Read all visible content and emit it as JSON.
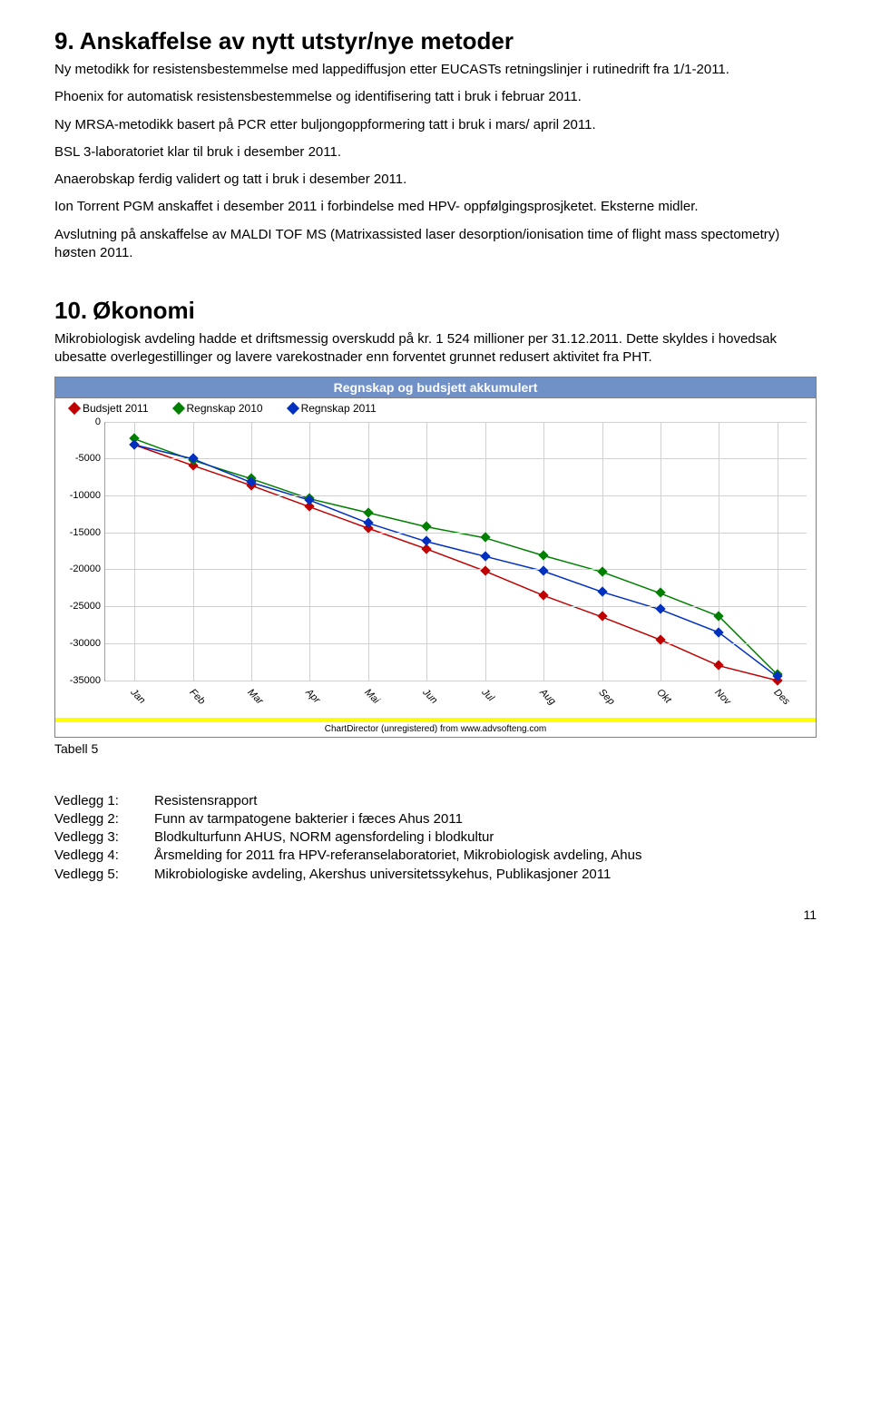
{
  "section9": {
    "number": "9.",
    "title": "Anskaffelse av nytt utstyr/nye metoder",
    "paras": [
      "Ny metodikk for resistensbestemmelse med lappediffusjon etter EUCASTs retningslinjer i rutinedrift fra 1/1-2011.",
      "Phoenix for automatisk resistensbestemmelse og identifisering tatt i bruk i februar 2011.",
      "Ny MRSA-metodikk basert på PCR etter buljongoppformering tatt i bruk i mars/ april 2011.",
      "BSL 3-laboratoriet klar til bruk i desember 2011.",
      "Anaerobskap ferdig validert og tatt i bruk i desember 2011.",
      "Ion Torrent PGM anskaffet i desember 2011 i forbindelse med HPV- oppfølgingsprosjketet. Eksterne midler.",
      "Avslutning på anskaffelse av MALDI TOF MS (Matrixassisted laser desorption/ionisation time of flight mass spectometry) høsten 2011."
    ]
  },
  "section10": {
    "number": "10.",
    "title": "Økonomi",
    "para": "Mikrobiologisk avdeling hadde et driftsmessig overskudd på kr. 1 524 millioner per 31.12.2011. Dette skyldes i hovedsak ubesatte overlegestillinger og lavere varekostnader enn forventet grunnet redusert aktivitet fra PHT."
  },
  "chart": {
    "type": "line",
    "title": "Regnskap og budsjett akkumulert",
    "title_bg": "#7090c8",
    "title_color": "#ffffff",
    "border_color": "#808080",
    "background_color": "#ffffff",
    "grid_color": "#d0d0d0",
    "months": [
      "Jan",
      "Feb",
      "Mar",
      "Apr",
      "Mai",
      "Jun",
      "Jul",
      "Aug",
      "Sep",
      "Okt",
      "Nov",
      "Des"
    ],
    "ylim": [
      -35000,
      0
    ],
    "ytick_step": 5000,
    "yticks": [
      0,
      -5000,
      -10000,
      -15000,
      -20000,
      -25000,
      -30000,
      -35000
    ],
    "series": [
      {
        "name": "Budsjett 2011",
        "color": "#c00000",
        "values": [
          -3100,
          -5900,
          -8600,
          -11500,
          -14400,
          -17200,
          -20200,
          -23500,
          -26400,
          -29500,
          -33000,
          -36000
        ]
      },
      {
        "name": "Regnskap 2010",
        "color": "#008000",
        "values": [
          -2300,
          -5200,
          -7700,
          -10400,
          -12300,
          -14200,
          -15700,
          -18100,
          -20300,
          -23200,
          -26300,
          -34200
        ]
      },
      {
        "name": "Regnskap 2011",
        "color": "#0030c0",
        "values": [
          -3100,
          -5000,
          -8200,
          -10600,
          -13700,
          -16200,
          -18200,
          -20200,
          -23000,
          -25400,
          -28500,
          -34500
        ]
      }
    ],
    "footer_text": "ChartDirector (unregistered) from www.advsofteng.com",
    "footer_stripe_color": "#ffff00",
    "tick_fontsize": 11
  },
  "tableCaption": "Tabell 5",
  "vedlegg": [
    {
      "label": "Vedlegg 1:",
      "text": "Resistensrapport"
    },
    {
      "label": "Vedlegg 2:",
      "text": "Funn av tarmpatogene bakterier i fæces Ahus 2011"
    },
    {
      "label": "Vedlegg 3:",
      "text": "Blodkulturfunn AHUS, NORM agensfordeling i blodkultur"
    },
    {
      "label": "Vedlegg 4:",
      "text": "Årsmelding for 2011 fra HPV-referanselaboratoriet, Mikrobiologisk avdeling, Ahus"
    },
    {
      "label": "Vedlegg 5:",
      "text": "Mikrobiologiske avdeling, Akershus universitetssykehus, Publikasjoner 2011"
    }
  ],
  "pageNumber": "11"
}
